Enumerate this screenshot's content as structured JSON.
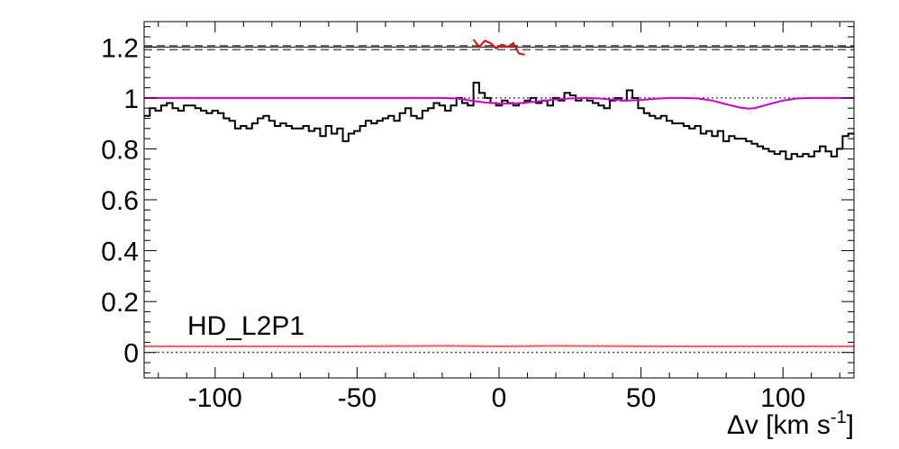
{
  "chart_data": {
    "type": "line",
    "title": "",
    "label": "HD_L2P1",
    "xlabel_main": "Δv [km s",
    "xlabel_sup": "-1",
    "xlabel_close": "]",
    "ylabel": "",
    "xlim": [
      -125,
      125
    ],
    "ylim": [
      -0.1,
      1.3
    ],
    "xticks": [
      -100,
      -50,
      0,
      50,
      100
    ],
    "xtick_labels": [
      "-100",
      "-50",
      "0",
      "50",
      "100"
    ],
    "yticks": [
      0,
      0.2,
      0.4,
      0.6,
      0.8,
      1,
      1.2
    ],
    "ytick_labels": [
      "0",
      "0.2",
      "0.4",
      "0.6",
      "0.8",
      "1",
      "1.2"
    ],
    "grid": false,
    "colors": {
      "flux": "#000000",
      "model": "#cc00cc",
      "residual": "#ee0000",
      "error": "#ff5555",
      "guide": "#000000"
    },
    "reference_lines": [
      {
        "y": 1.0,
        "style": "dotted"
      },
      {
        "y": 0.0,
        "style": "dotted"
      },
      {
        "y": 1.205,
        "style": "dashed"
      },
      {
        "y": 1.2,
        "style": "solid"
      },
      {
        "y": 1.19,
        "style": "dashed"
      }
    ],
    "series": [
      {
        "kind": "step",
        "color": "#000000",
        "x": [
          -125,
          -123,
          -121,
          -119,
          -117,
          -115,
          -113,
          -111,
          -109,
          -107,
          -105,
          -103,
          -101,
          -99,
          -97,
          -95,
          -93,
          -91,
          -89,
          -87,
          -85,
          -83,
          -81,
          -79,
          -77,
          -75,
          -73,
          -71,
          -69,
          -67,
          -65,
          -63,
          -61,
          -59,
          -57,
          -55,
          -53,
          -51,
          -49,
          -47,
          -45,
          -43,
          -41,
          -39,
          -37,
          -35,
          -33,
          -31,
          -29,
          -27,
          -25,
          -23,
          -21,
          -19,
          -17,
          -15,
          -13,
          -11,
          -9,
          -7,
          -5,
          -3,
          -1,
          1,
          3,
          5,
          7,
          9,
          11,
          13,
          15,
          17,
          19,
          21,
          23,
          25,
          27,
          29,
          31,
          33,
          35,
          37,
          39,
          41,
          43,
          45,
          47,
          49,
          51,
          53,
          55,
          57,
          59,
          61,
          63,
          65,
          67,
          69,
          71,
          73,
          75,
          77,
          79,
          81,
          83,
          85,
          87,
          89,
          91,
          93,
          95,
          97,
          99,
          101,
          103,
          105,
          107,
          109,
          111,
          113,
          115,
          117,
          119,
          121,
          123
        ],
        "values": [
          0.93,
          0.96,
          0.95,
          0.97,
          0.98,
          0.96,
          0.95,
          0.97,
          0.97,
          0.96,
          0.95,
          0.94,
          0.95,
          0.94,
          0.92,
          0.91,
          0.88,
          0.89,
          0.88,
          0.9,
          0.92,
          0.93,
          0.91,
          0.89,
          0.9,
          0.89,
          0.88,
          0.88,
          0.89,
          0.87,
          0.88,
          0.85,
          0.89,
          0.86,
          0.88,
          0.83,
          0.86,
          0.87,
          0.89,
          0.91,
          0.9,
          0.91,
          0.92,
          0.93,
          0.91,
          0.94,
          0.96,
          0.93,
          0.92,
          0.95,
          0.96,
          0.98,
          0.97,
          0.95,
          0.97,
          1.0,
          0.98,
          0.97,
          1.06,
          1.02,
          1.0,
          0.98,
          0.97,
          0.99,
          0.98,
          0.97,
          0.98,
          0.99,
          1.0,
          0.98,
          0.99,
          0.97,
          1.0,
          0.99,
          1.02,
          1.01,
          0.99,
          1.0,
          0.99,
          0.98,
          0.97,
          0.96,
          0.99,
          1.0,
          0.99,
          1.03,
          1.0,
          0.96,
          0.94,
          0.93,
          0.92,
          0.93,
          0.91,
          0.9,
          0.9,
          0.89,
          0.88,
          0.89,
          0.86,
          0.87,
          0.85,
          0.87,
          0.83,
          0.85,
          0.84,
          0.84,
          0.83,
          0.82,
          0.81,
          0.8,
          0.79,
          0.78,
          0.79,
          0.76,
          0.78,
          0.77,
          0.78,
          0.77,
          0.79,
          0.81,
          0.79,
          0.77,
          0.8,
          0.85,
          0.86
        ]
      },
      {
        "kind": "line",
        "color": "#cc00cc",
        "x": [
          -125,
          -60,
          -20,
          -15,
          -10,
          -5,
          0,
          5,
          10,
          15,
          20,
          25,
          30,
          35,
          40,
          45,
          50,
          55,
          60,
          65,
          70,
          75,
          80,
          85,
          88,
          90,
          95,
          100,
          105,
          110,
          115,
          120,
          125
        ],
        "values": [
          1.0,
          1.0,
          1.0,
          0.998,
          0.99,
          0.982,
          0.978,
          0.978,
          0.982,
          0.988,
          0.994,
          0.998,
          1.0,
          0.998,
          0.993,
          0.99,
          0.992,
          0.997,
          1.0,
          1.0,
          0.998,
          0.99,
          0.975,
          0.962,
          0.958,
          0.96,
          0.975,
          0.99,
          0.998,
          1.0,
          1.0,
          1.0,
          1.0
        ]
      },
      {
        "kind": "line",
        "color": "#ee0000",
        "x": [
          -9,
          -7,
          -5,
          -3,
          -1,
          1,
          3,
          5,
          7,
          9
        ],
        "values": [
          1.23,
          1.2,
          1.225,
          1.215,
          1.195,
          1.21,
          1.2,
          1.215,
          1.175,
          1.17
        ]
      },
      {
        "kind": "line",
        "color": "#ff5555",
        "x": [
          -125,
          -60,
          -20,
          0,
          20,
          60,
          125
        ],
        "values": [
          0.024,
          0.024,
          0.026,
          0.024,
          0.026,
          0.024,
          0.024
        ]
      }
    ]
  }
}
